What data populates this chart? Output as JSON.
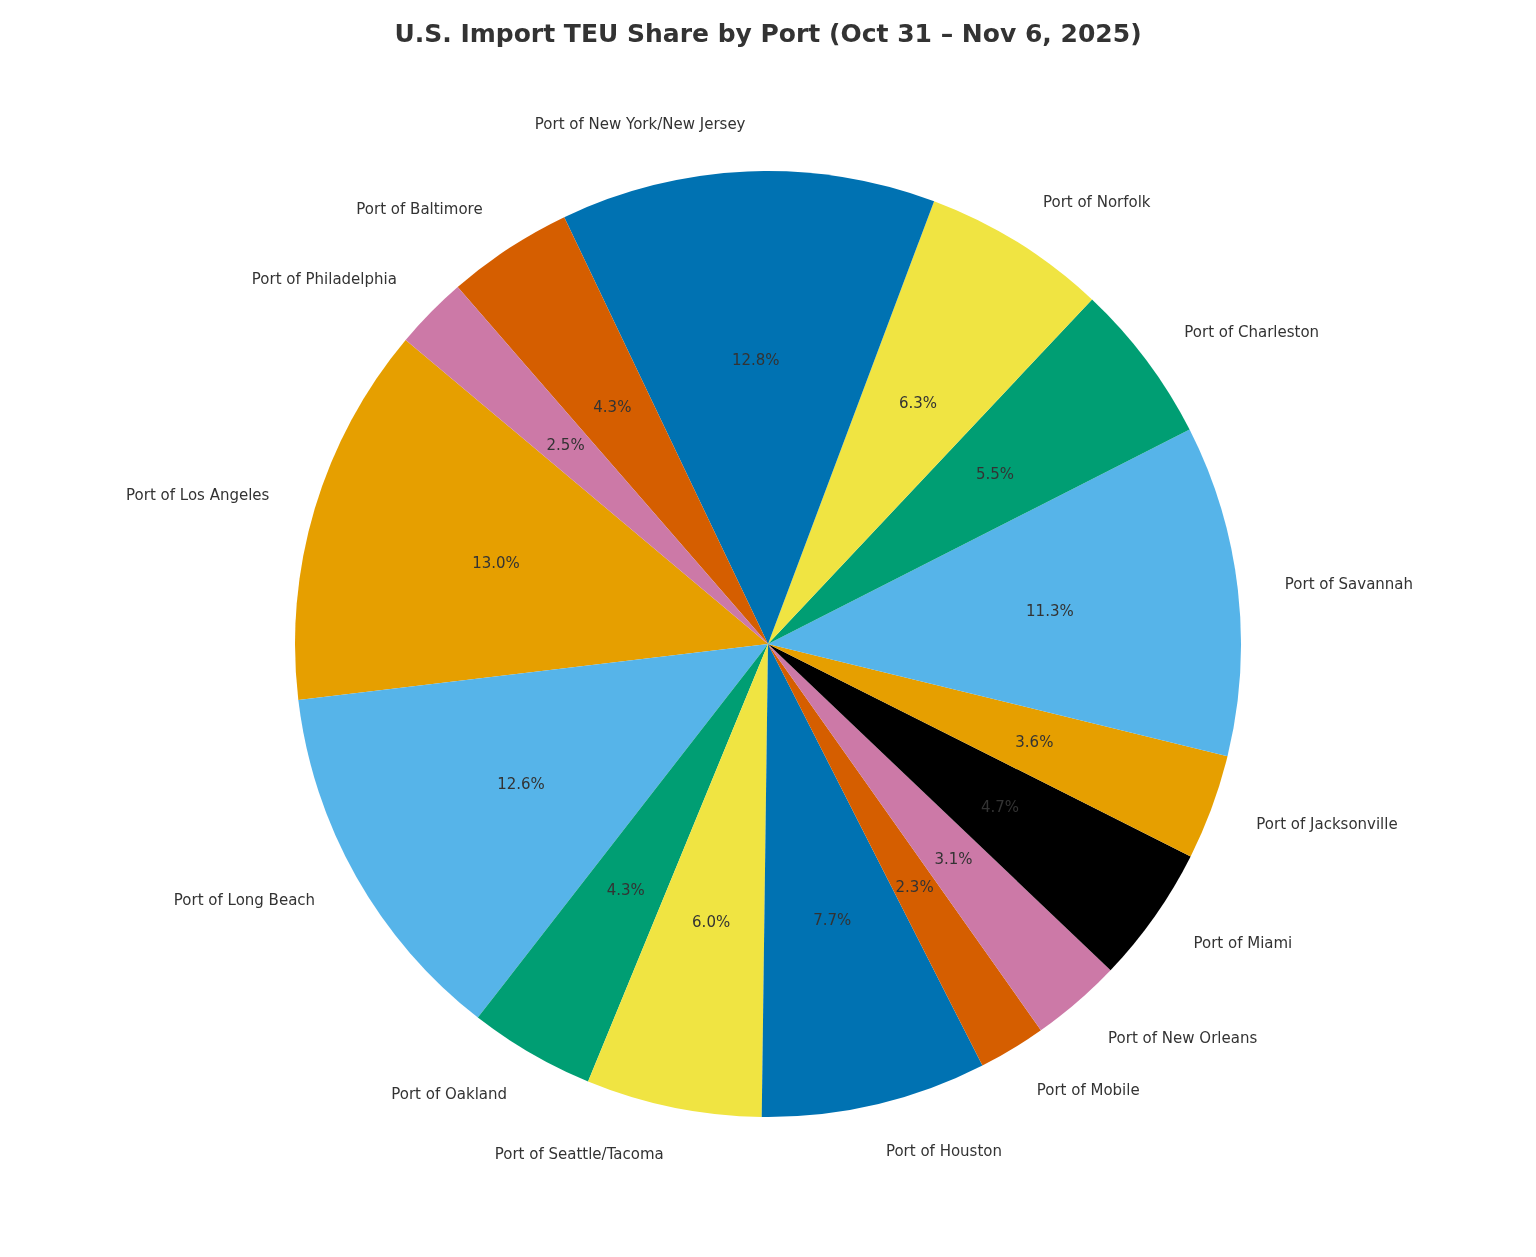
{
  "chart_data": {
    "type": "pie",
    "title": "U.S. Import TEU Share by Port (Oct 31 – Nov 6, 2025)",
    "categories": [
      "Port of Los Angeles",
      "Port of Long Beach",
      "Port of Oakland",
      "Port of Seattle/Tacoma",
      "Port of Houston",
      "Port of Mobile",
      "Port of New Orleans",
      "Port of Miami",
      "Port of Jacksonville",
      "Port of Savannah",
      "Port of Charleston",
      "Port of Norfolk",
      "Port of New York/New Jersey",
      "Port of Baltimore",
      "Port of Philadelphia"
    ],
    "values": [
      13.0,
      12.6,
      4.3,
      6.0,
      7.7,
      2.3,
      3.1,
      4.7,
      3.6,
      11.3,
      5.5,
      6.3,
      12.8,
      4.3,
      2.5
    ],
    "value_labels": [
      "13.0%",
      "12.6%",
      "4.3%",
      "6.0%",
      "7.7%",
      "2.3%",
      "3.1%",
      "4.7%",
      "3.6%",
      "11.3%",
      "5.5%",
      "6.3%",
      "12.8%",
      "4.3%",
      "2.5%"
    ],
    "colors": [
      "#e69f00",
      "#56b4e9",
      "#009e73",
      "#f0e442",
      "#0072b2",
      "#d55e00",
      "#cc79a7",
      "#000000",
      "#e69f00",
      "#56b4e9",
      "#009e73",
      "#f0e442",
      "#0072b2",
      "#d55e00",
      "#cc79a7"
    ]
  }
}
